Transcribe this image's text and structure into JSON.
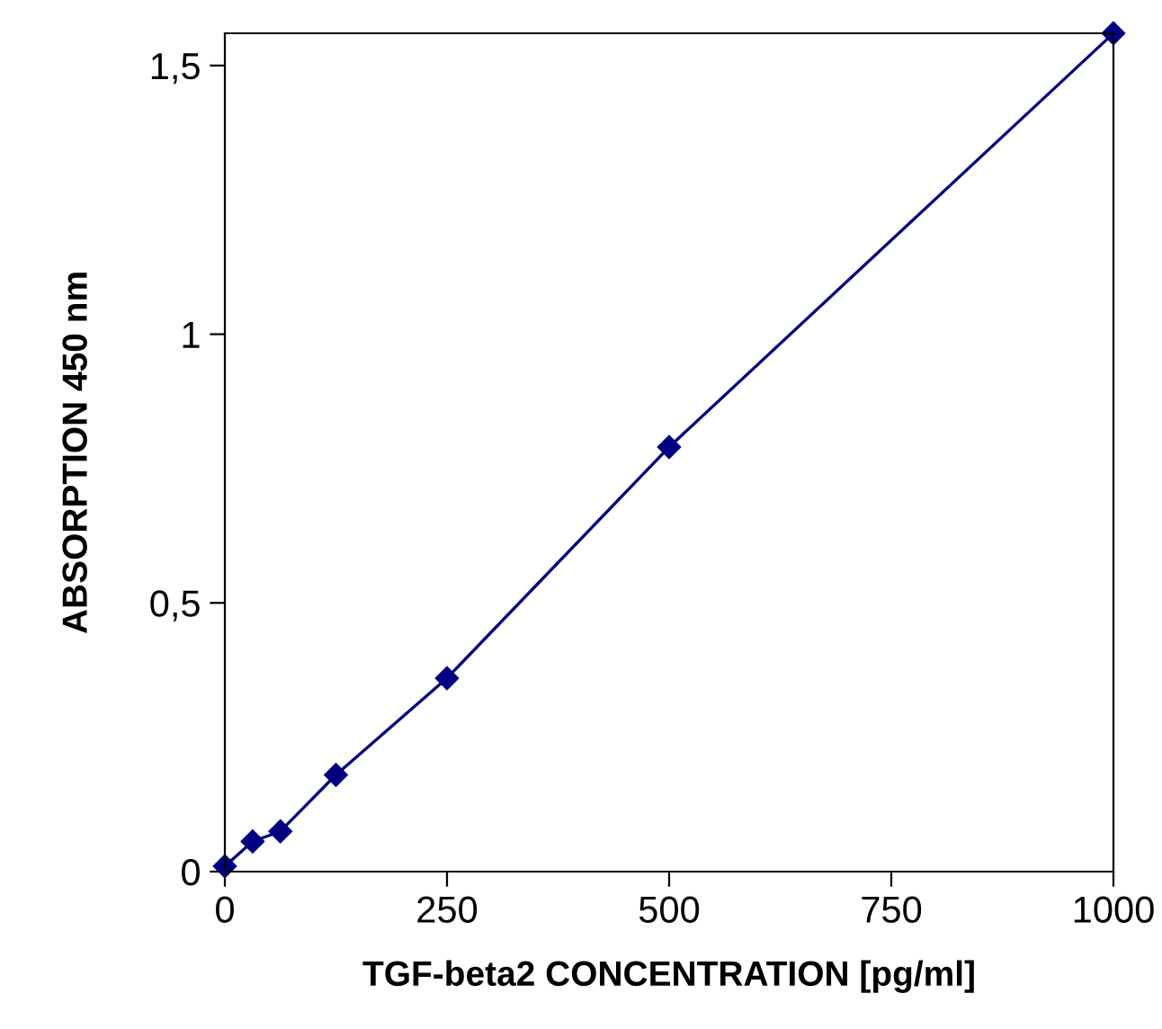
{
  "chart_data": {
    "type": "line",
    "xlabel": "TGF-beta2 CONCENTRATION [pg/ml]",
    "ylabel": "ABSORPTION 450 nm",
    "x": [
      0,
      31.25,
      62.5,
      125,
      250,
      500,
      1000
    ],
    "series": [
      {
        "color": "#000080",
        "values": [
          0.01,
          0.056,
          0.075,
          0.18,
          0.36,
          0.79,
          1.56
        ]
      }
    ],
    "marker": "diamond",
    "line_style": "solid",
    "grid": false,
    "legend": false,
    "xlim": [
      0,
      1000
    ],
    "xticks": [
      0,
      250,
      500,
      750,
      1000
    ],
    "ylim": [
      0,
      1.56
    ],
    "yticks": [
      0,
      {
        "value": 0.5,
        "label": "0,5"
      },
      1,
      {
        "value": 1.5,
        "label": "1,5"
      }
    ]
  }
}
